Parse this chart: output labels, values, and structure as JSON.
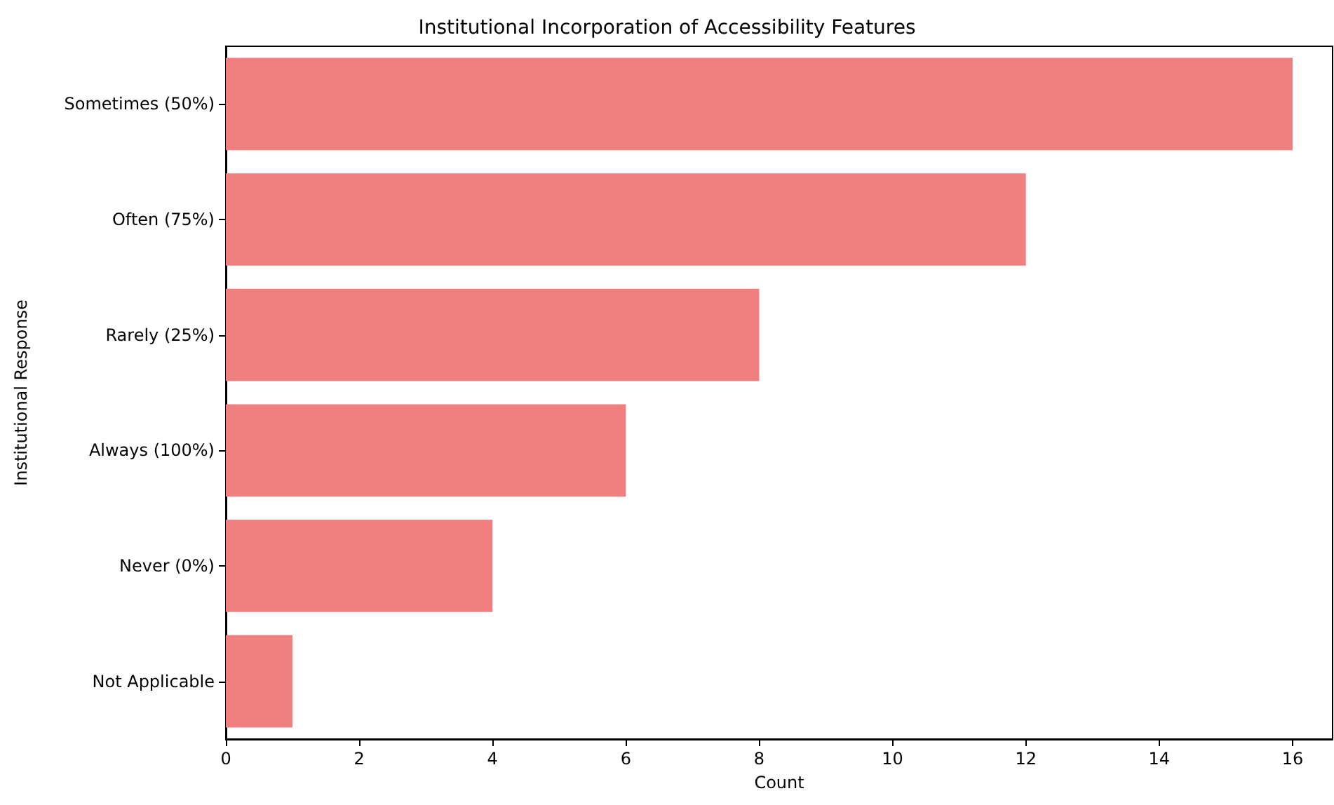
{
  "chart_data": {
    "type": "bar",
    "orientation": "horizontal",
    "title": "Institutional Incorporation of Accessibility Features",
    "xlabel": "Count",
    "ylabel": "Institutional Response",
    "categories": [
      "Sometimes (50%)",
      "Often (75%)",
      "Rarely (25%)",
      "Always (100%)",
      "Never (0%)",
      "Not Applicable"
    ],
    "values": [
      16,
      12,
      8,
      6,
      4,
      1
    ],
    "color": "#f08080",
    "xlim": [
      0,
      16.6
    ],
    "xticks": [
      0,
      2,
      4,
      6,
      8,
      10,
      12,
      14,
      16
    ],
    "grid": false
  }
}
